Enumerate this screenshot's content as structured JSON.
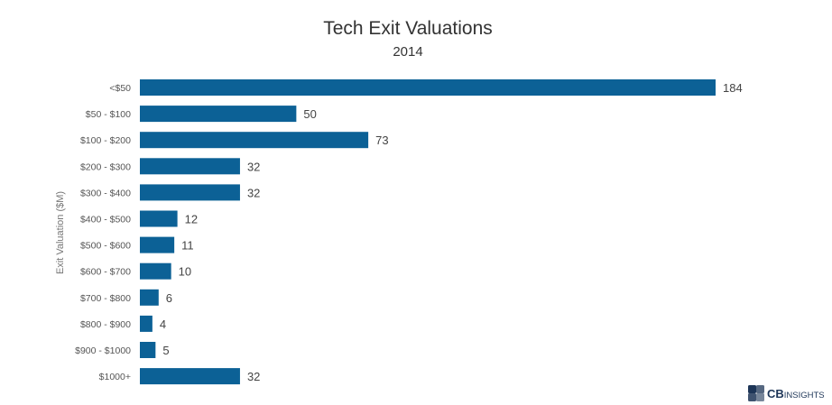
{
  "chart_data": {
    "type": "bar",
    "orientation": "horizontal",
    "title": "Tech Exit Valuations",
    "subtitle": "2014",
    "ylabel": "Exit Valuation ($M)",
    "xlabel": "",
    "categories": [
      "<$50",
      "$50 - $100",
      "$100 - $200",
      "$200 - $300",
      "$300 - $400",
      "$400 - $500",
      "$500 - $600",
      "$600 - $700",
      "$700 - $800",
      "$800 - $900",
      "$900 - $1000",
      "$1000+"
    ],
    "values": [
      184,
      50,
      73,
      32,
      32,
      12,
      11,
      10,
      6,
      4,
      5,
      32
    ],
    "xlim": [
      0,
      184
    ],
    "grid": false,
    "bar_color": "#0c6196"
  },
  "branding": {
    "logo_bold": "CB",
    "logo_text": "INSIGHTS",
    "logo_color": "#1d3557"
  }
}
